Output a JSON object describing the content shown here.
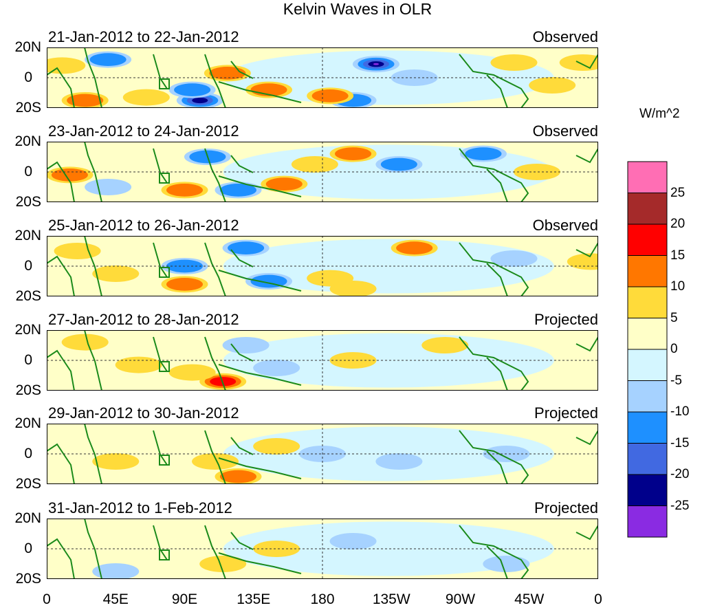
{
  "title": "Kelvin Waves in OLR",
  "units": "W/m^2",
  "lat_labels": [
    "20N",
    "0",
    "20S"
  ],
  "lon_labels": [
    "0",
    "45E",
    "90E",
    "135E",
    "180",
    "135W",
    "90W",
    "45W",
    "0"
  ],
  "colorbar": {
    "labels": [
      "25",
      "20",
      "15",
      "10",
      "5",
      "0",
      "-5",
      "-10",
      "-15",
      "-20",
      "-25"
    ],
    "colors": [
      "#ff6eb4",
      "#a52a2a",
      "#ff0000",
      "#ff7700",
      "#ffdb3a",
      "#ffffc8",
      "#d4f6ff",
      "#a6d2ff",
      "#1e90ff",
      "#4169e1",
      "#00008b",
      "#8a2be2"
    ]
  },
  "panels": [
    {
      "date": "21-Jan-2012 to 22-Jan-2012",
      "type": "Observed",
      "anomalies": [
        [
          10,
          8,
          8
        ],
        [
          25,
          -15,
          12
        ],
        [
          65,
          -13,
          7
        ],
        [
          100,
          -15,
          -20
        ],
        [
          95,
          -8,
          -10
        ],
        [
          118,
          3,
          12
        ],
        [
          145,
          -8,
          10
        ],
        [
          215,
          9,
          -25
        ],
        [
          200,
          -15,
          -10
        ],
        [
          40,
          12,
          -10
        ],
        [
          185,
          -12,
          10
        ],
        [
          305,
          10,
          7
        ],
        [
          330,
          -5,
          7
        ],
        [
          350,
          10,
          7
        ],
        [
          240,
          0,
          -7
        ]
      ]
    },
    {
      "date": "23-Jan-2012 to 24-Jan-2012",
      "type": "Observed",
      "anomalies": [
        [
          15,
          -2,
          10
        ],
        [
          90,
          -12,
          12
        ],
        [
          200,
          12,
          12
        ],
        [
          155,
          -8,
          10
        ],
        [
          105,
          10,
          -12
        ],
        [
          125,
          -12,
          -10
        ],
        [
          230,
          5,
          -10
        ],
        [
          40,
          -10,
          -7
        ],
        [
          285,
          12,
          -10
        ],
        [
          320,
          0,
          7
        ],
        [
          175,
          5,
          7
        ]
      ]
    },
    {
      "date": "25-Jan-2012 to 26-Jan-2012",
      "type": "Observed",
      "anomalies": [
        [
          90,
          -12,
          12
        ],
        [
          240,
          12,
          12
        ],
        [
          185,
          -8,
          7
        ],
        [
          130,
          12,
          -10
        ],
        [
          145,
          -10,
          -10
        ],
        [
          90,
          0,
          -10
        ],
        [
          20,
          10,
          7
        ],
        [
          45,
          -5,
          7
        ],
        [
          305,
          5,
          -7
        ],
        [
          355,
          3,
          7
        ],
        [
          200,
          -15,
          5
        ]
      ]
    },
    {
      "date": "27-Jan-2012 to 28-Jan-2012",
      "type": "Projected",
      "anomalies": [
        [
          115,
          -14,
          15
        ],
        [
          95,
          -8,
          7
        ],
        [
          150,
          -5,
          -7
        ],
        [
          130,
          10,
          -7
        ],
        [
          60,
          -3,
          5
        ],
        [
          25,
          12,
          5
        ],
        [
          200,
          0,
          5
        ],
        [
          260,
          10,
          5
        ]
      ]
    },
    {
      "date": "29-Jan-2012 to 30-Jan-2012",
      "type": "Projected",
      "anomalies": [
        [
          125,
          -15,
          12
        ],
        [
          110,
          -5,
          7
        ],
        [
          180,
          0,
          -7
        ],
        [
          150,
          5,
          5
        ],
        [
          45,
          -5,
          5
        ],
        [
          230,
          -5,
          -5
        ],
        [
          300,
          0,
          -5
        ]
      ]
    },
    {
      "date": "31-Jan-2012 to 1-Feb-2012",
      "type": "Projected",
      "anomalies": [
        [
          115,
          -10,
          5
        ],
        [
          150,
          0,
          5
        ],
        [
          200,
          5,
          -5
        ],
        [
          45,
          -15,
          -5
        ],
        [
          300,
          -10,
          -5
        ]
      ]
    }
  ]
}
